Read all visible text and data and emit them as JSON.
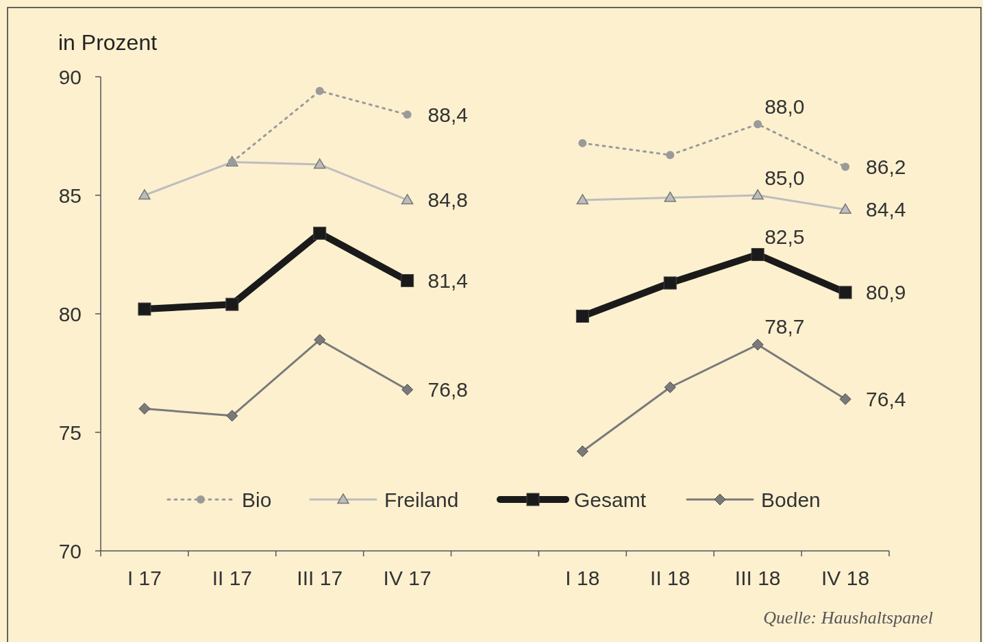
{
  "chart_data": {
    "type": "line",
    "ylabel": "in Prozent",
    "categories": [
      "I 17",
      "II 17",
      "III 17",
      "IV 17",
      null,
      "I 18",
      "II 18",
      "III 18",
      "IV 18"
    ],
    "series": [
      {
        "name": "Bio",
        "color": "#9a9a9a",
        "marker": "circle",
        "line_style": "dotted",
        "values": [
          null,
          86.4,
          89.4,
          88.4,
          null,
          87.2,
          86.7,
          88.0,
          86.2
        ],
        "value_labels": [
          null,
          null,
          null,
          "88,4",
          null,
          null,
          null,
          "88,0",
          "86,2"
        ]
      },
      {
        "name": "Freiland",
        "color": "#bdbdbd",
        "marker": "triangle",
        "line_style": "solid",
        "values": [
          85.0,
          86.4,
          86.3,
          84.8,
          null,
          84.8,
          84.9,
          85.0,
          84.4
        ],
        "value_labels": [
          null,
          null,
          null,
          "84,8",
          null,
          null,
          null,
          "85,0",
          "84,4"
        ]
      },
      {
        "name": "Gesamt",
        "color": "#1a1a1a",
        "marker": "square",
        "line_style": "solid",
        "values": [
          80.2,
          80.4,
          83.4,
          81.4,
          null,
          79.9,
          81.3,
          82.5,
          80.9
        ],
        "value_labels": [
          null,
          null,
          null,
          "81,4",
          null,
          null,
          null,
          "82,5",
          "80,9"
        ]
      },
      {
        "name": "Boden",
        "color": "#7a7a7a",
        "marker": "diamond",
        "line_style": "solid",
        "values": [
          76.0,
          75.7,
          78.9,
          76.8,
          null,
          74.2,
          76.9,
          78.7,
          76.4
        ],
        "value_labels": [
          null,
          null,
          null,
          "76,8",
          null,
          null,
          null,
          "78,7",
          "76,4"
        ]
      }
    ],
    "ylim": [
      70,
      90
    ],
    "yticks": [
      70,
      75,
      80,
      85,
      90
    ],
    "grid": false,
    "legend": "bottom",
    "annotations": [
      "Quelle: Haushaltspanel"
    ]
  }
}
